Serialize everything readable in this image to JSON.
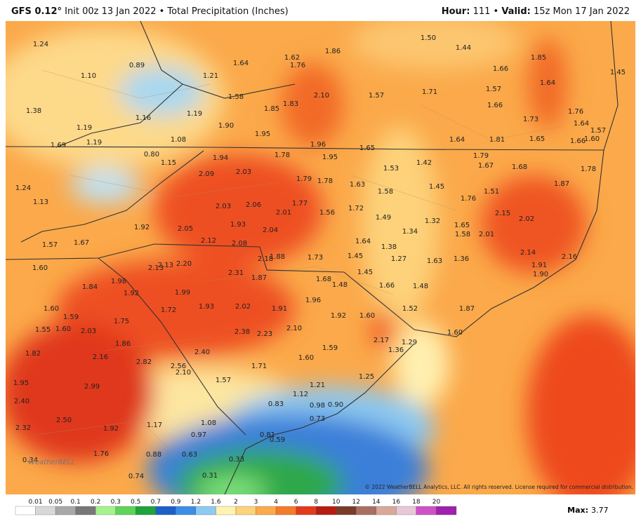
{
  "header": {
    "model": "GFS 0.12°",
    "init": "Init 00z 13 Jan 2022 • Total Precipitation (Inches)",
    "hour_label": "Hour:",
    "hour": "111 •",
    "valid_label": "Valid:",
    "valid": "15z Mon 17 Jan 2022"
  },
  "map": {
    "labels": [
      "1.24",
      "0.89",
      "1.64",
      "1.62",
      "1.86",
      "1.76",
      "1.50",
      "1.44",
      "1.85",
      "1.45",
      "1.10",
      "1.21",
      "1.66",
      "1.58",
      "2.10",
      "1.57",
      "1.71",
      "1.57",
      "1.64",
      "1.38",
      "1.16",
      "1.19",
      "1.85",
      "1.83",
      "1.66",
      "1.76",
      "1.73",
      "1.90",
      "1.19",
      "1.95",
      "1.64",
      "1.57",
      "1.08",
      "1.64",
      "1.81",
      "1.65",
      "1.66",
      "1.60",
      "1.69",
      "1.19",
      "1.96",
      "1.65",
      "0.80",
      "1.78",
      "1.95",
      "1.79",
      "1.42",
      "1.15",
      "1.94",
      "1.53",
      "1.67",
      "1.68",
      "1.78",
      "2.09",
      "2.03",
      "1.79",
      "1.78",
      "1.63",
      "1.58",
      "1.45",
      "1.87",
      "1.24",
      "1.51",
      "1.13",
      "1.76",
      "2.03",
      "2.06",
      "1.77",
      "2.01",
      "1.56",
      "1.72",
      "1.49",
      "2.15",
      "2.02",
      "1.32",
      "1.92",
      "2.05",
      "1.93",
      "2.04",
      "1.34",
      "1.65",
      "1.58",
      "2.01",
      "2.12",
      "2.08",
      "1.64",
      "1.57",
      "1.67",
      "1.38",
      "2.18",
      "1.88",
      "1.73",
      "1.45",
      "1.27",
      "1.63",
      "1.36",
      "2.14",
      "2.16",
      "2.13",
      "2.13",
      "2.20",
      "2.31",
      "1.87",
      "1.60",
      "1.91",
      "1.90",
      "1.45",
      "1.98",
      "1.68",
      "1.48",
      "1.66",
      "1.48",
      "1.84",
      "1.92",
      "1.99",
      "1.96",
      "1.93",
      "2.02",
      "1.91",
      "1.52",
      "1.87",
      "1.60",
      "1.72",
      "1.59",
      "1.92",
      "1.60",
      "1.75",
      "1.55",
      "1.60",
      "2.03",
      "2.38",
      "2.23",
      "2.10",
      "1.60",
      "2.17",
      "1.29",
      "1.86",
      "1.59",
      "1.36",
      "1.82",
      "2.16",
      "2.40",
      "2.82",
      "2.56",
      "1.60",
      "1.71",
      "2.10",
      "1.25",
      "1.95",
      "1.57",
      "1.21",
      "2.99",
      "1.12",
      "2.40",
      "0.83",
      "0.98",
      "0.90",
      "2.50",
      "0.73",
      "1.17",
      "1.08",
      "2.32",
      "1.92",
      "0.97",
      "0.81",
      "0.59",
      "0.63",
      "0.88",
      "1.76",
      "0.34",
      "0.33",
      "0.31",
      "0.74"
    ]
  },
  "logo": "WeatherBELL",
  "copyright": "© 2022 WeatherBELL Analytics, LLC. All rights reserved. License required for commercial distribution.",
  "legend": {
    "ticks": [
      "0.01",
      "0.05",
      "0.1",
      "0.2",
      "0.3",
      "0.5",
      "0.7",
      "0.9",
      "1.2",
      "1.6",
      "2",
      "3",
      "4",
      "6",
      "8",
      "10",
      "12",
      "14",
      "16",
      "18",
      "20"
    ],
    "colors": [
      "#ffffff",
      "#d8d8d8",
      "#a8a8a8",
      "#787878",
      "#a6f28f",
      "#5fd35a",
      "#1fa33a",
      "#1c5fc8",
      "#3b8ee6",
      "#8ccaf2",
      "#fff3b0",
      "#fdd27a",
      "#fba94a",
      "#f57a2a",
      "#e5391c",
      "#b71c10",
      "#7a3b2a",
      "#a87060",
      "#d9a898",
      "#e8c8d8",
      "#d050c8",
      "#a020b0"
    ]
  },
  "max": {
    "label": "Max:",
    "value": "3.77"
  }
}
